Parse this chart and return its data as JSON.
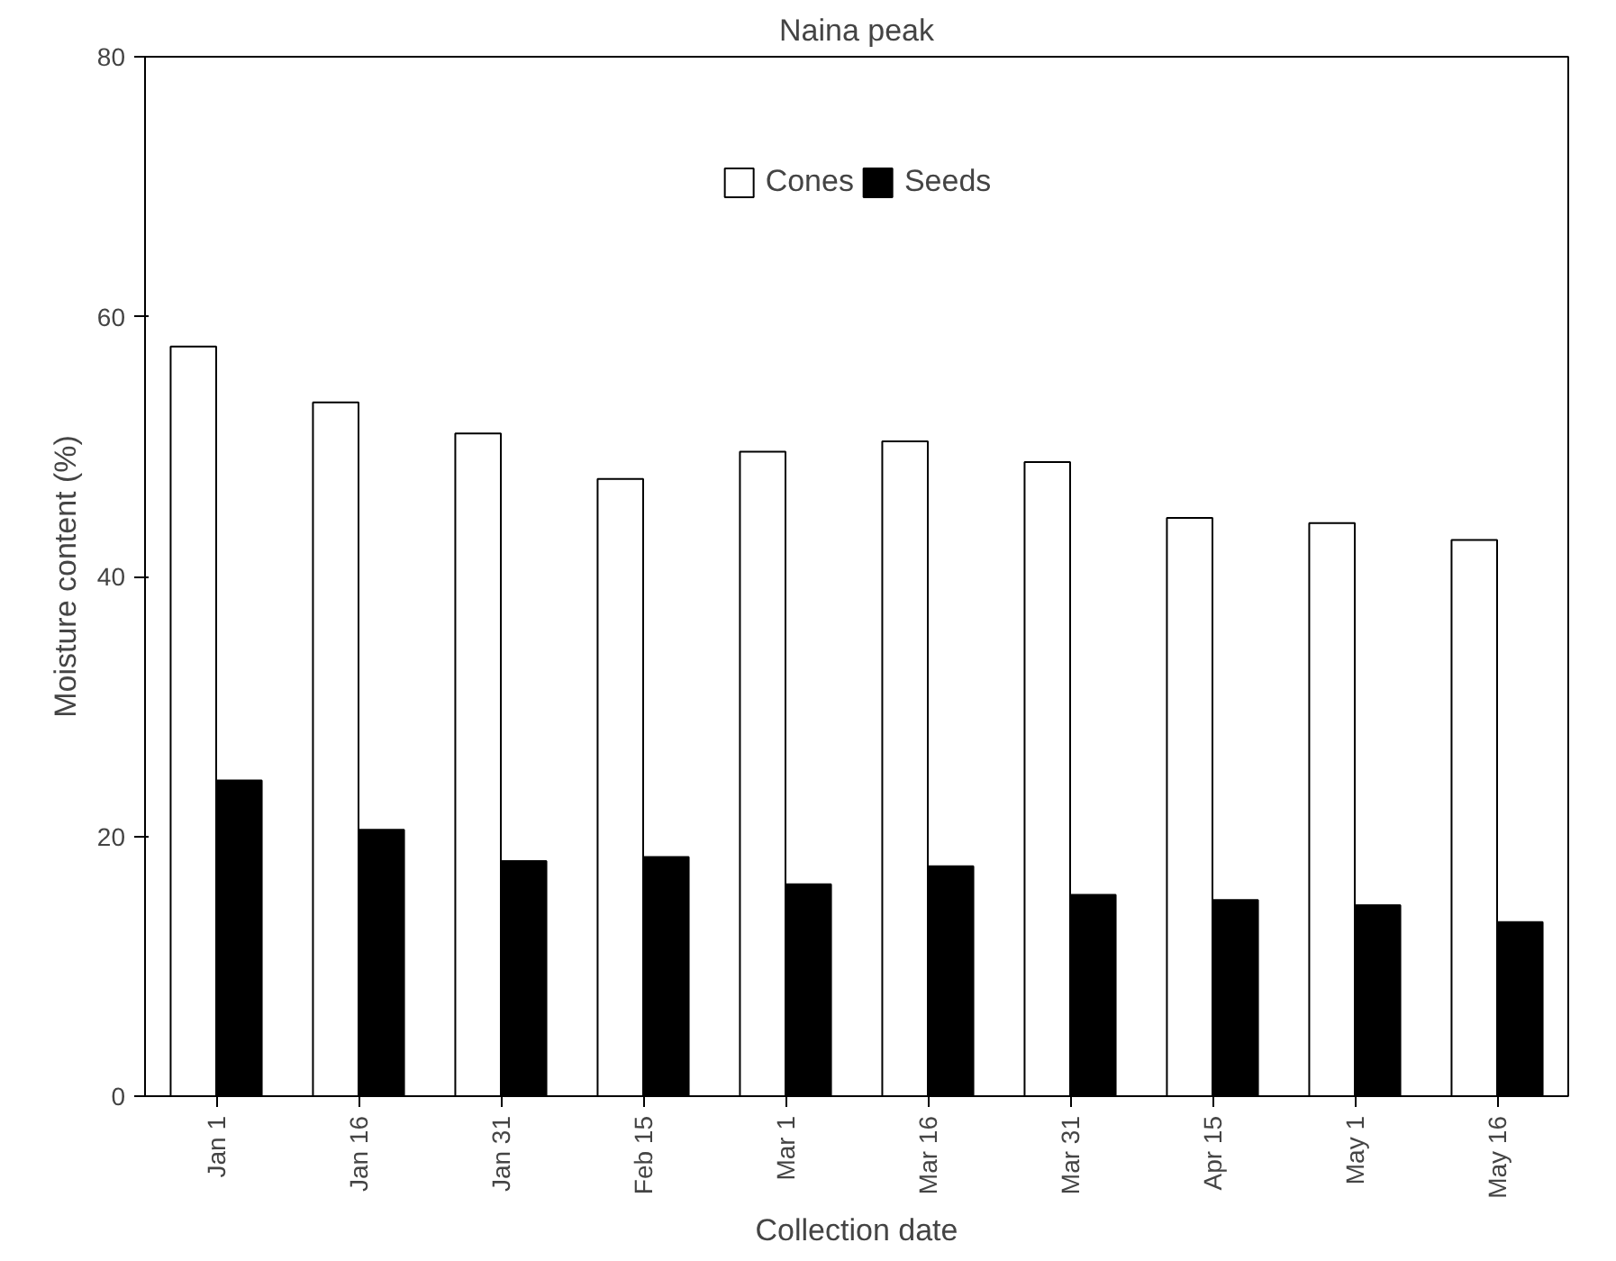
{
  "chart_data": {
    "type": "bar",
    "title": "Naina peak",
    "xlabel": "Collection date",
    "ylabel": "Moisture content (%)",
    "categories": [
      "Jan 1",
      "Jan 16",
      "Jan 31",
      "Feb 15",
      "Mar 1",
      "Mar 16",
      "Mar 31",
      "Apr 15",
      "May 1",
      "May 16"
    ],
    "series": [
      {
        "name": "Cones",
        "color": "#ffffff",
        "values": [
          57.7,
          53.4,
          51.0,
          47.5,
          49.6,
          50.4,
          48.8,
          44.5,
          44.1,
          42.8
        ]
      },
      {
        "name": "Seeds",
        "color": "#000000",
        "values": [
          24.3,
          20.5,
          18.1,
          18.4,
          16.3,
          17.7,
          15.5,
          15.1,
          14.7,
          13.4
        ]
      }
    ],
    "ylim": [
      0,
      80
    ],
    "yticks": [
      0,
      20,
      40,
      60,
      80
    ],
    "grid": false,
    "legend": "top"
  }
}
